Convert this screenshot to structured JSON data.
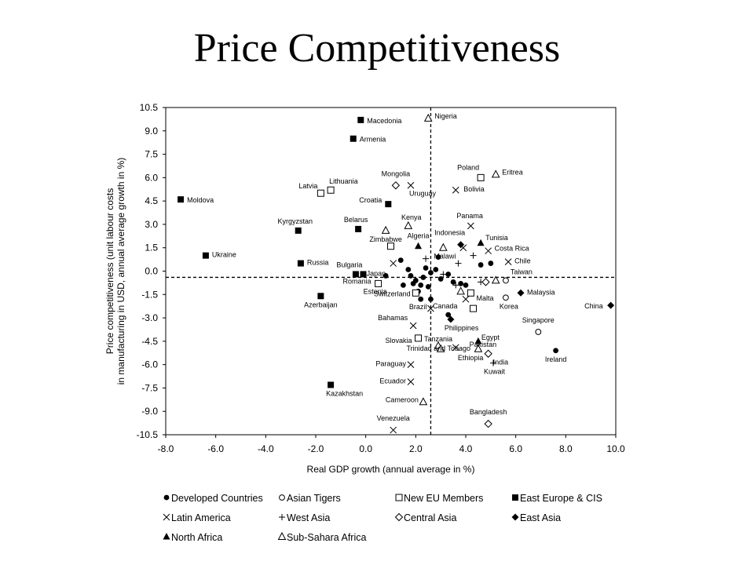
{
  "slide": {
    "title": "Price Competitiveness"
  },
  "chart_data": {
    "type": "scatter",
    "title": "",
    "xlabel": "Real GDP growth (annual average in %)",
    "ylabel_lines": [
      "Price competitiveness (unit labour costs",
      "in manufacturing in USD, annual average growth in %)"
    ],
    "xlim": [
      -8.0,
      10.0
    ],
    "ylim": [
      -10.5,
      10.5
    ],
    "xticks": [
      "-8.0",
      "-6.0",
      "-4.0",
      "-2.0",
      "0.0",
      "2.0",
      "4.0",
      "6.0",
      "8.0",
      "10.0"
    ],
    "yticks": [
      "10.5",
      "9.0",
      "7.5",
      "6.0",
      "4.5",
      "3.0",
      "1.5",
      "0.0",
      "-1.5",
      "-3.0",
      "-4.5",
      "-6.0",
      "-7.5",
      "-9.0",
      "-10.5"
    ],
    "reference_lines": {
      "x": 2.6,
      "y": -0.4,
      "style": "dashed"
    },
    "legend_position": "bottom",
    "series": [
      {
        "name": "Developed Countries",
        "marker": "filled-circle",
        "points": [
          {
            "label": "Japan",
            "x": 0.8,
            "y": -0.3
          },
          {
            "label": "Switzerland",
            "x": 1.5,
            "y": -0.9
          },
          {
            "label": "Canada",
            "x": 3.3,
            "y": -2.8
          },
          {
            "label": "Ireland",
            "x": 7.6,
            "y": -5.1
          },
          {
            "label": "",
            "x": 1.4,
            "y": 0.7
          },
          {
            "label": "",
            "x": 1.7,
            "y": 0.1
          },
          {
            "label": "",
            "x": 1.8,
            "y": -0.3
          },
          {
            "label": "",
            "x": 1.9,
            "y": -0.8
          },
          {
            "label": "",
            "x": 2.0,
            "y": -0.6
          },
          {
            "label": "",
            "x": 2.1,
            "y": -1.3
          },
          {
            "label": "",
            "x": 2.2,
            "y": -0.9
          },
          {
            "label": "",
            "x": 2.3,
            "y": -0.4
          },
          {
            "label": "",
            "x": 2.4,
            "y": 0.2
          },
          {
            "label": "",
            "x": 2.5,
            "y": -1.0
          },
          {
            "label": "",
            "x": 2.6,
            "y": -0.1
          },
          {
            "label": "",
            "x": 2.2,
            "y": -1.8
          },
          {
            "label": "",
            "x": 2.6,
            "y": -1.8
          },
          {
            "label": "",
            "x": 2.8,
            "y": 0.1
          },
          {
            "label": "",
            "x": 2.9,
            "y": 0.9
          },
          {
            "label": "",
            "x": 3.0,
            "y": -0.5
          },
          {
            "label": "",
            "x": 3.3,
            "y": -0.2
          },
          {
            "label": "",
            "x": 3.5,
            "y": -0.7
          },
          {
            "label": "",
            "x": 3.8,
            "y": -0.8
          },
          {
            "label": "",
            "x": 4.0,
            "y": -0.9
          },
          {
            "label": "",
            "x": 4.6,
            "y": 0.4
          },
          {
            "label": "",
            "x": 5.0,
            "y": 0.5
          }
        ]
      },
      {
        "name": "Asian Tigers",
        "marker": "open-circle",
        "points": [
          {
            "label": "Korea",
            "x": 5.6,
            "y": -1.7
          },
          {
            "label": "Singapore",
            "x": 6.9,
            "y": -3.9
          },
          {
            "label": "Taiwan",
            "x": 5.6,
            "y": -0.6
          }
        ]
      },
      {
        "name": "New EU Members",
        "marker": "open-square",
        "points": [
          {
            "label": "Latvia",
            "x": -1.8,
            "y": 5.0
          },
          {
            "label": "Lithuania",
            "x": -1.4,
            "y": 5.2
          },
          {
            "label": "Poland",
            "x": 4.6,
            "y": 6.0
          },
          {
            "label": "Estonia",
            "x": 0.5,
            "y": -0.8
          },
          {
            "label": "Slovakia",
            "x": 2.1,
            "y": -4.3
          },
          {
            "label": "Malta",
            "x": 4.3,
            "y": -2.4
          },
          {
            "label": "",
            "x": 1.0,
            "y": 1.6
          },
          {
            "label": "",
            "x": 2.0,
            "y": -1.4
          },
          {
            "label": "",
            "x": 4.2,
            "y": -1.4
          }
        ]
      },
      {
        "name": "East Europe & CIS",
        "marker": "filled-square",
        "points": [
          {
            "label": "Macedonia",
            "x": -0.2,
            "y": 9.7
          },
          {
            "label": "Armenia",
            "x": -0.5,
            "y": 8.5
          },
          {
            "label": "Moldova",
            "x": -7.4,
            "y": 4.6
          },
          {
            "label": "Croatia",
            "x": 0.9,
            "y": 4.3
          },
          {
            "label": "Kyrgyzstan",
            "x": -2.7,
            "y": 2.6
          },
          {
            "label": "Belarus",
            "x": -0.3,
            "y": 2.7
          },
          {
            "label": "Ukraine",
            "x": -6.4,
            "y": 1.0
          },
          {
            "label": "Russia",
            "x": -2.6,
            "y": 0.5
          },
          {
            "label": "Bulgaria",
            "x": -0.4,
            "y": -0.2
          },
          {
            "label": "Romania",
            "x": -0.1,
            "y": -0.2
          },
          {
            "label": "Azerbaijan",
            "x": -1.8,
            "y": -1.6
          },
          {
            "label": "Kazakhstan",
            "x": -1.4,
            "y": -7.3
          }
        ]
      },
      {
        "name": "Latin America",
        "marker": "x",
        "points": [
          {
            "label": "Uruguay",
            "x": 1.8,
            "y": 5.5
          },
          {
            "label": "Bolivia",
            "x": 3.6,
            "y": 5.2
          },
          {
            "label": "Panama",
            "x": 4.2,
            "y": 2.9
          },
          {
            "label": "Costa Rica",
            "x": 4.9,
            "y": 1.3
          },
          {
            "label": "Chile",
            "x": 5.7,
            "y": 0.6
          },
          {
            "label": "Brazil",
            "x": 2.6,
            "y": -2.4
          },
          {
            "label": "Bahamas",
            "x": 1.9,
            "y": -3.5
          },
          {
            "label": "Trinidad and Tobago",
            "x": 3.6,
            "y": -4.9
          },
          {
            "label": "Paraguay",
            "x": 1.8,
            "y": -6.0
          },
          {
            "label": "Ecuador",
            "x": 1.8,
            "y": -7.1
          },
          {
            "label": "Venezuela",
            "x": 1.1,
            "y": -10.2
          },
          {
            "label": "",
            "x": 1.1,
            "y": 0.5
          },
          {
            "label": "",
            "x": 3.9,
            "y": 1.5
          },
          {
            "label": "",
            "x": 4.0,
            "y": -1.8
          }
        ]
      },
      {
        "name": "West Asia",
        "marker": "plus",
        "points": [
          {
            "label": "Kuwait",
            "x": 5.1,
            "y": -5.9
          },
          {
            "label": "",
            "x": 2.4,
            "y": 0.8
          },
          {
            "label": "",
            "x": 3.1,
            "y": -0.2
          },
          {
            "label": "",
            "x": 3.6,
            "y": -0.9
          },
          {
            "label": "",
            "x": 4.3,
            "y": 1.0
          },
          {
            "label": "",
            "x": 4.6,
            "y": -0.7
          },
          {
            "label": "",
            "x": 3.7,
            "y": 0.5
          }
        ]
      },
      {
        "name": "Central Asia",
        "marker": "open-diamond",
        "points": [
          {
            "label": "Mongolia",
            "x": 1.2,
            "y": 5.5
          },
          {
            "label": "India",
            "x": 4.9,
            "y": -5.3
          },
          {
            "label": "Bangladesh",
            "x": 4.9,
            "y": -9.8
          },
          {
            "label": "",
            "x": 4.8,
            "y": -0.7
          }
        ]
      },
      {
        "name": "East Asia",
        "marker": "filled-diamond",
        "points": [
          {
            "label": "Indonesia",
            "x": 3.8,
            "y": 1.7
          },
          {
            "label": "Malaysia",
            "x": 6.2,
            "y": -1.4
          },
          {
            "label": "China",
            "x": 9.8,
            "y": -2.2
          },
          {
            "label": "Philippines",
            "x": 3.4,
            "y": -3.1
          }
        ]
      },
      {
        "name": "North Africa",
        "marker": "filled-triangle",
        "points": [
          {
            "label": "Algeria",
            "x": 2.1,
            "y": 1.6
          },
          {
            "label": "Tunisia",
            "x": 4.6,
            "y": 1.8
          },
          {
            "label": "Egypt",
            "x": 4.5,
            "y": -4.5
          }
        ]
      },
      {
        "name": "Sub-Sahara Africa",
        "marker": "open-triangle",
        "points": [
          {
            "label": "Nigeria",
            "x": 2.5,
            "y": 9.8
          },
          {
            "label": "Eritrea",
            "x": 5.2,
            "y": 6.2
          },
          {
            "label": "Kenya",
            "x": 1.7,
            "y": 2.9
          },
          {
            "label": "Zimbabwe",
            "x": 0.8,
            "y": 2.6
          },
          {
            "label": "Malawi",
            "x": 3.1,
            "y": 1.5
          },
          {
            "label": "Tanzania",
            "x": 2.9,
            "y": -4.8
          },
          {
            "label": "Pakistan",
            "x": 4.5,
            "y": -5.0
          },
          {
            "label": "Ethiopia",
            "x": 3.0,
            "y": -5.0
          },
          {
            "label": "Cameroon",
            "x": 2.3,
            "y": -8.4
          },
          {
            "label": "",
            "x": 3.8,
            "y": -1.3
          },
          {
            "label": "",
            "x": 5.2,
            "y": -0.6
          }
        ]
      }
    ]
  }
}
